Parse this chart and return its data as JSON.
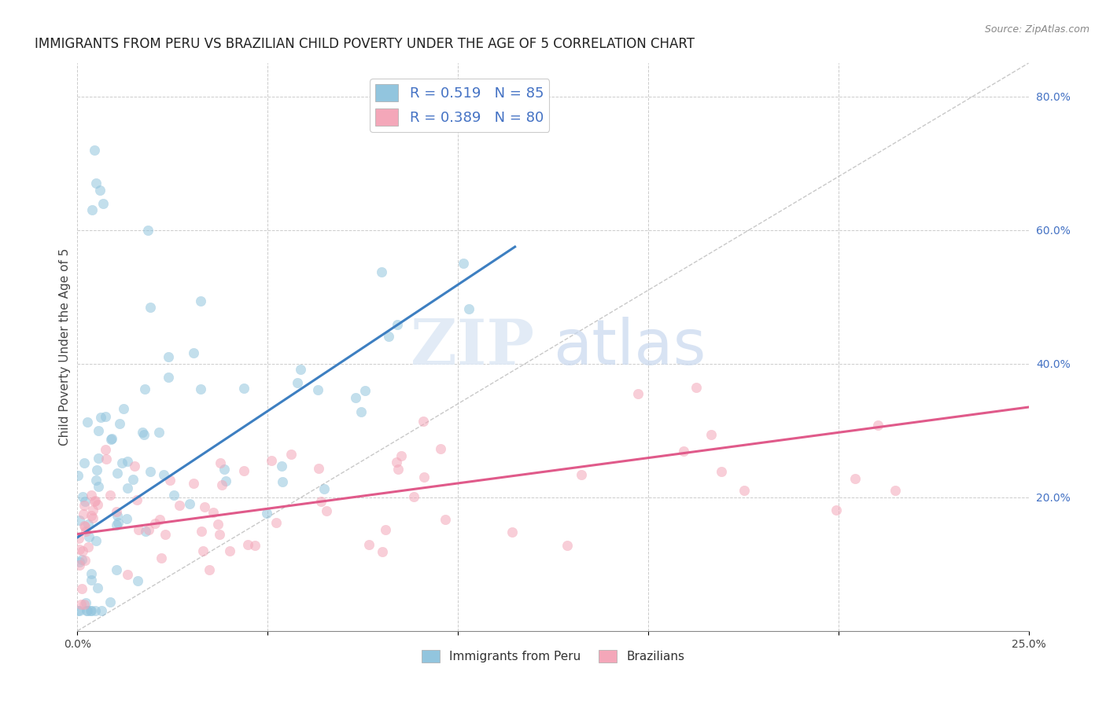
{
  "title": "IMMIGRANTS FROM PERU VS BRAZILIAN CHILD POVERTY UNDER THE AGE OF 5 CORRELATION CHART",
  "source": "Source: ZipAtlas.com",
  "ylabel": "Child Poverty Under the Age of 5",
  "xlabel_peru": "Immigrants from Peru",
  "xlabel_brazil": "Brazilians",
  "legend_peru_R": "0.519",
  "legend_peru_N": "85",
  "legend_brazil_R": "0.389",
  "legend_brazil_N": "80",
  "color_peru": "#92c5de",
  "color_brazil": "#f4a7b9",
  "color_line_peru": "#3d7fc1",
  "color_line_brazil": "#e05a8a",
  "color_diagonal": "#bbbbbb",
  "xlim": [
    0.0,
    0.25
  ],
  "ylim": [
    0.0,
    0.85
  ],
  "right_ytick_labels": [
    "80.0%",
    "60.0%",
    "40.0%",
    "20.0%"
  ],
  "right_ytick_values": [
    0.8,
    0.6,
    0.4,
    0.2
  ],
  "xtick_labels": [
    "0.0%",
    "",
    "",
    "",
    "",
    "25.0%"
  ],
  "xtick_values": [
    0.0,
    0.05,
    0.1,
    0.15,
    0.2,
    0.25
  ],
  "watermark_zip": "ZIP",
  "watermark_atlas": "atlas",
  "title_fontsize": 12,
  "axis_label_fontsize": 11,
  "tick_fontsize": 10,
  "peru_line_x0": 0.0,
  "peru_line_y0": 0.14,
  "peru_line_x1": 0.115,
  "peru_line_y1": 0.575,
  "brazil_line_x0": 0.0,
  "brazil_line_y0": 0.145,
  "brazil_line_x1": 0.25,
  "brazil_line_y1": 0.335
}
